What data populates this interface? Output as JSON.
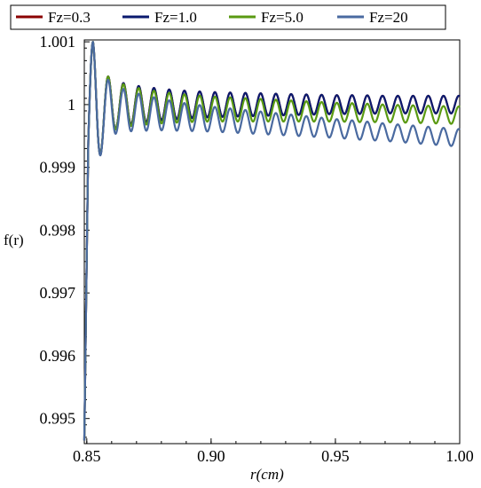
{
  "chart_data": {
    "type": "line",
    "xlabel": "r(cm)",
    "ylabel": "f(r)",
    "xlim": [
      0.849,
      1.0
    ],
    "ylim": [
      0.9946,
      1.00103
    ],
    "x_ticks": [
      0.85,
      0.9,
      0.95,
      1.0
    ],
    "x_tick_labels": [
      "0.85",
      "0.90",
      "0.95",
      "1.00"
    ],
    "y_ticks": [
      0.995,
      0.996,
      0.997,
      0.998,
      0.999,
      1.0,
      1.001
    ],
    "y_tick_labels": [
      "0.995",
      "0.996",
      "0.997",
      "0.998",
      "0.999",
      "1",
      "1.001"
    ],
    "legend_position": "top",
    "series": [
      {
        "name": "Fz=0.3",
        "color": "#8b0000",
        "x": [
          0.849,
          0.8506,
          0.8525,
          0.8545,
          0.8565,
          0.8585,
          0.862,
          0.866,
          0.87,
          0.88,
          0.89,
          0.9,
          0.91,
          0.92,
          0.93,
          0.94,
          0.95,
          0.96,
          0.97,
          0.98,
          0.99,
          1.0
        ],
        "envelope_center": [
          0.99465,
          0.9994,
          1.0,
          0.99985,
          0.9999,
          0.99995,
          1.0,
          1.0,
          1.0,
          1.0,
          1.0,
          1.0,
          1.0,
          1.0,
          1.0,
          1.0,
          1.0,
          1.0,
          1.0,
          1.0,
          1.0,
          1.0
        ],
        "envelope_amplitude": [
          0.0,
          0.0,
          0.001,
          0.00075,
          0.0006,
          0.0005,
          0.00037,
          0.00033,
          0.0003,
          0.00025,
          0.00022,
          0.0002,
          0.00019,
          0.00018,
          0.00017,
          0.00016,
          0.00015,
          0.00015,
          0.00014,
          0.00014,
          0.00014,
          0.00014
        ],
        "period": 0.00613
      },
      {
        "name": "Fz=1.0",
        "color": "#0a1a6e",
        "x": [
          0.849,
          0.8506,
          0.8525,
          0.8545,
          0.8565,
          0.8585,
          0.862,
          0.866,
          0.87,
          0.88,
          0.89,
          0.9,
          0.91,
          0.92,
          0.93,
          0.94,
          0.95,
          0.96,
          0.97,
          0.98,
          0.99,
          1.0
        ],
        "envelope_center": [
          0.99465,
          0.9994,
          1.0,
          0.99985,
          0.9999,
          0.99995,
          1.0,
          1.0,
          1.0,
          1.0,
          1.0,
          1.0,
          1.0,
          1.0,
          1.0,
          1.0,
          1.0,
          1.0,
          1.0,
          1.0,
          1.0,
          1.0
        ],
        "envelope_amplitude": [
          0.0,
          0.0,
          0.001,
          0.00075,
          0.0006,
          0.0005,
          0.00037,
          0.00033,
          0.0003,
          0.00025,
          0.00022,
          0.0002,
          0.00019,
          0.00018,
          0.00017,
          0.00016,
          0.00015,
          0.00015,
          0.00014,
          0.00014,
          0.00014,
          0.00014
        ],
        "period": 0.00613
      },
      {
        "name": "Fz=5.0",
        "color": "#5a9a12",
        "x": [
          0.849,
          0.8506,
          0.8525,
          0.8545,
          0.8565,
          0.8585,
          0.862,
          0.866,
          0.87,
          0.88,
          0.89,
          0.9,
          0.91,
          0.92,
          0.93,
          0.94,
          0.95,
          0.96,
          0.97,
          0.98,
          0.99,
          1.0
        ],
        "envelope_center": [
          0.99465,
          0.9994,
          1.0,
          0.99985,
          0.9999,
          0.99995,
          0.99999,
          0.99998,
          0.99997,
          0.99995,
          0.99994,
          0.99993,
          0.99992,
          0.99991,
          0.9999,
          0.99989,
          0.99988,
          0.99987,
          0.99986,
          0.99985,
          0.99984,
          0.99983
        ],
        "envelope_amplitude": [
          0.0,
          0.0,
          0.001,
          0.00075,
          0.0006,
          0.0005,
          0.00037,
          0.00033,
          0.0003,
          0.00025,
          0.00022,
          0.0002,
          0.00019,
          0.00018,
          0.00017,
          0.00016,
          0.00015,
          0.00015,
          0.00014,
          0.00014,
          0.00014,
          0.00014
        ],
        "period": 0.00613
      },
      {
        "name": "Fz=20",
        "color": "#4a6aa0",
        "x": [
          0.849,
          0.8506,
          0.8525,
          0.8545,
          0.8565,
          0.8585,
          0.862,
          0.866,
          0.87,
          0.88,
          0.89,
          0.9,
          0.91,
          0.92,
          0.93,
          0.94,
          0.95,
          0.96,
          0.97,
          0.98,
          0.99,
          1.0
        ],
        "envelope_center": [
          0.99465,
          0.9994,
          1.0,
          0.99985,
          0.99988,
          0.9999,
          0.99992,
          0.9999,
          0.99988,
          0.99984,
          0.9998,
          0.99977,
          0.99974,
          0.99971,
          0.99968,
          0.99965,
          0.99962,
          0.99959,
          0.99956,
          0.99953,
          0.9995,
          0.99947
        ],
        "envelope_amplitude": [
          0.0,
          0.0,
          0.001,
          0.00075,
          0.0006,
          0.0005,
          0.00037,
          0.00033,
          0.0003,
          0.00025,
          0.00022,
          0.0002,
          0.00019,
          0.00018,
          0.00017,
          0.00016,
          0.00015,
          0.00015,
          0.00014,
          0.00014,
          0.00014,
          0.00014
        ],
        "period": 0.00613
      }
    ]
  }
}
